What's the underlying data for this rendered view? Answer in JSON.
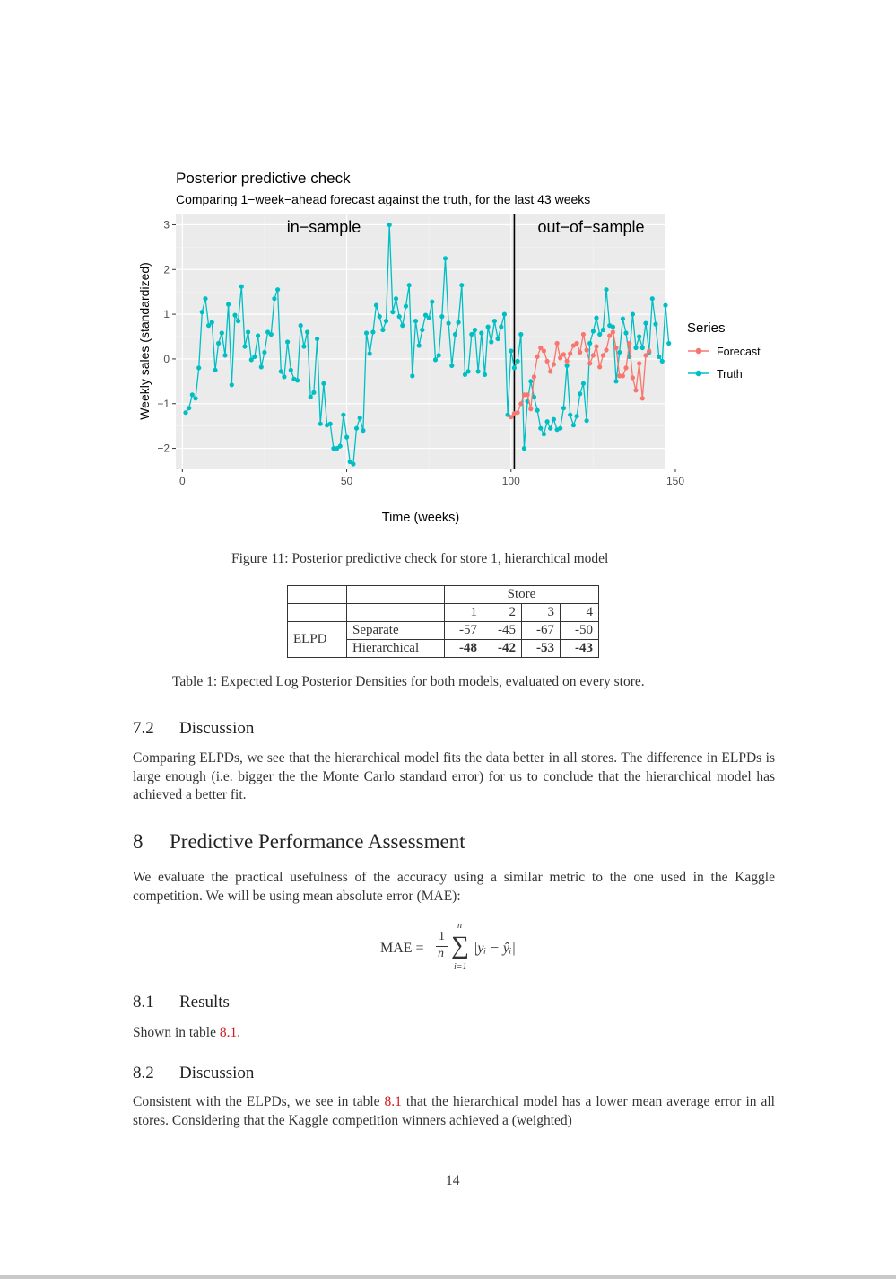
{
  "figure": {
    "caption": "Figure 11: Posterior predictive check for store 1, hierarchical model",
    "chart_data": {
      "type": "line",
      "title": "Posterior predictive check",
      "subtitle": "Comparing 1−week−ahead forecast against the truth, for the last 43 weeks",
      "xlabel": "Time (weeks)",
      "ylabel": "Weekly sales (standardized)",
      "xlim": [
        -2,
        147
      ],
      "ylim": [
        -2.45,
        3.25
      ],
      "x_ticks": [
        "0",
        "50",
        "100",
        "150"
      ],
      "y_ticks": [
        "3",
        "2",
        "1",
        "0",
        "−1",
        "−2"
      ],
      "grid": true,
      "legend_title": "Series",
      "legend_position": "right",
      "annotations": {
        "left": "in−sample",
        "right": "out−of−sample",
        "vline_x": 101
      },
      "colors": {
        "Forecast": "#f8766d",
        "Truth": "#00bfc4",
        "panel": "#ebebeb",
        "grid": "#ffffff"
      },
      "series": [
        {
          "name": "Forecast",
          "x_start": 100,
          "values": [
            -1.3,
            -1.22,
            -1.2,
            -1.0,
            -0.8,
            -0.8,
            -1.12,
            -0.4,
            0.05,
            0.25,
            0.18,
            -0.05,
            -0.28,
            -0.12,
            0.35,
            0.02,
            0.1,
            -0.05,
            0.12,
            0.3,
            0.35,
            0.15,
            0.55,
            0.2,
            -0.1,
            0.08,
            0.28,
            -0.18,
            0.08,
            0.2,
            0.52,
            0.6,
            0.25,
            -0.38,
            -0.38,
            -0.2,
            0.35,
            -0.42,
            -0.7,
            -0.1,
            -0.88,
            0.08,
            0.18
          ]
        },
        {
          "name": "Truth",
          "x_start": 1,
          "values": [
            -1.2,
            -1.1,
            -0.8,
            -0.88,
            -0.2,
            1.05,
            1.35,
            0.75,
            0.82,
            -0.25,
            0.35,
            0.58,
            0.08,
            1.22,
            -0.58,
            0.98,
            0.85,
            1.62,
            0.28,
            0.6,
            -0.02,
            0.05,
            0.52,
            -0.18,
            0.15,
            0.6,
            0.55,
            1.35,
            1.55,
            -0.28,
            -0.4,
            0.38,
            -0.25,
            -0.45,
            -0.48,
            0.75,
            0.28,
            0.6,
            -0.85,
            -0.75,
            0.45,
            -1.45,
            -0.55,
            -1.48,
            -1.45,
            -2.0,
            -2.0,
            -1.95,
            -1.25,
            -1.75,
            -2.3,
            -2.35,
            -1.55,
            -1.32,
            -1.6,
            0.58,
            0.12,
            0.6,
            1.2,
            0.95,
            0.65,
            0.85,
            3.0,
            1.05,
            1.35,
            0.95,
            0.75,
            1.18,
            1.65,
            -0.38,
            0.85,
            0.3,
            0.65,
            0.98,
            0.92,
            1.28,
            -0.02,
            0.08,
            0.95,
            2.25,
            0.8,
            -0.15,
            0.55,
            0.82,
            1.65,
            -0.35,
            -0.28,
            0.55,
            0.65,
            -0.28,
            0.58,
            -0.35,
            0.72,
            0.38,
            0.85,
            0.45,
            0.72,
            1.0,
            -1.25,
            0.18,
            -0.2,
            -0.05,
            0.55,
            -2.0,
            -0.95,
            -0.5,
            -0.85,
            -1.15,
            -1.55,
            -1.68,
            -1.4,
            -1.55,
            -1.35,
            -1.58,
            -1.55,
            -1.1,
            -0.15,
            -1.25,
            -1.48,
            -1.28,
            -0.78,
            -0.55,
            -1.38,
            0.35,
            0.62,
            0.92,
            0.55,
            0.65,
            1.55,
            0.75,
            0.72,
            -0.5,
            0.15,
            0.9,
            0.58,
            0.05,
            1.0,
            0.25,
            0.5,
            0.25,
            0.8,
            0.15,
            1.35,
            0.78,
            0.05,
            -0.05,
            1.2,
            0.35
          ]
        }
      ]
    }
  },
  "table": {
    "caption": "Table 1: Expected Log Posterior Densities for both models, evaluated on every store.",
    "group_header": "Store",
    "columns": [
      "1",
      "2",
      "3",
      "4"
    ],
    "row_group": "ELPD",
    "rows": [
      {
        "model": "Separate",
        "values": [
          "-57",
          "-45",
          "-67",
          "-50"
        ]
      },
      {
        "model": "Hierarchical",
        "values": [
          "-48",
          "-42",
          "-53",
          "-43"
        ]
      }
    ]
  },
  "sections": {
    "s72": {
      "num": "7.2",
      "title": "Discussion",
      "text": "Comparing ELPDs, we see that the hierarchical model fits the data better in all stores. The difference in ELPDs is large enough (i.e. bigger the the Monte Carlo standard error) for us to conclude that the hierarchical model has achieved a better fit."
    },
    "s8": {
      "num": "8",
      "title": "Predictive Performance Assessment",
      "text": "We evaluate the practical usefulness of the accuracy using a similar metric to the one used in the Kaggle competition. We will be using mean absolute error (MAE):"
    },
    "s81": {
      "num": "8.1",
      "title": "Results",
      "text_before": "Shown in table ",
      "ref": "8.1",
      "text_after": "."
    },
    "s82": {
      "num": "8.2",
      "title": "Discussion",
      "text_before": "Consistent with the ELPDs, we see in table ",
      "ref": "8.1",
      "text_after": " that the hierarchical model has a lower mean average error in all stores. Considering that the Kaggle competition winners achieved a (weighted)"
    }
  },
  "formula": {
    "lhs": "MAE =",
    "num": "1",
    "den": "n",
    "sum": "∑",
    "upper": "n",
    "lower": "i=1",
    "body": "|yᵢ − ŷᵢ|"
  },
  "page_number": "14"
}
